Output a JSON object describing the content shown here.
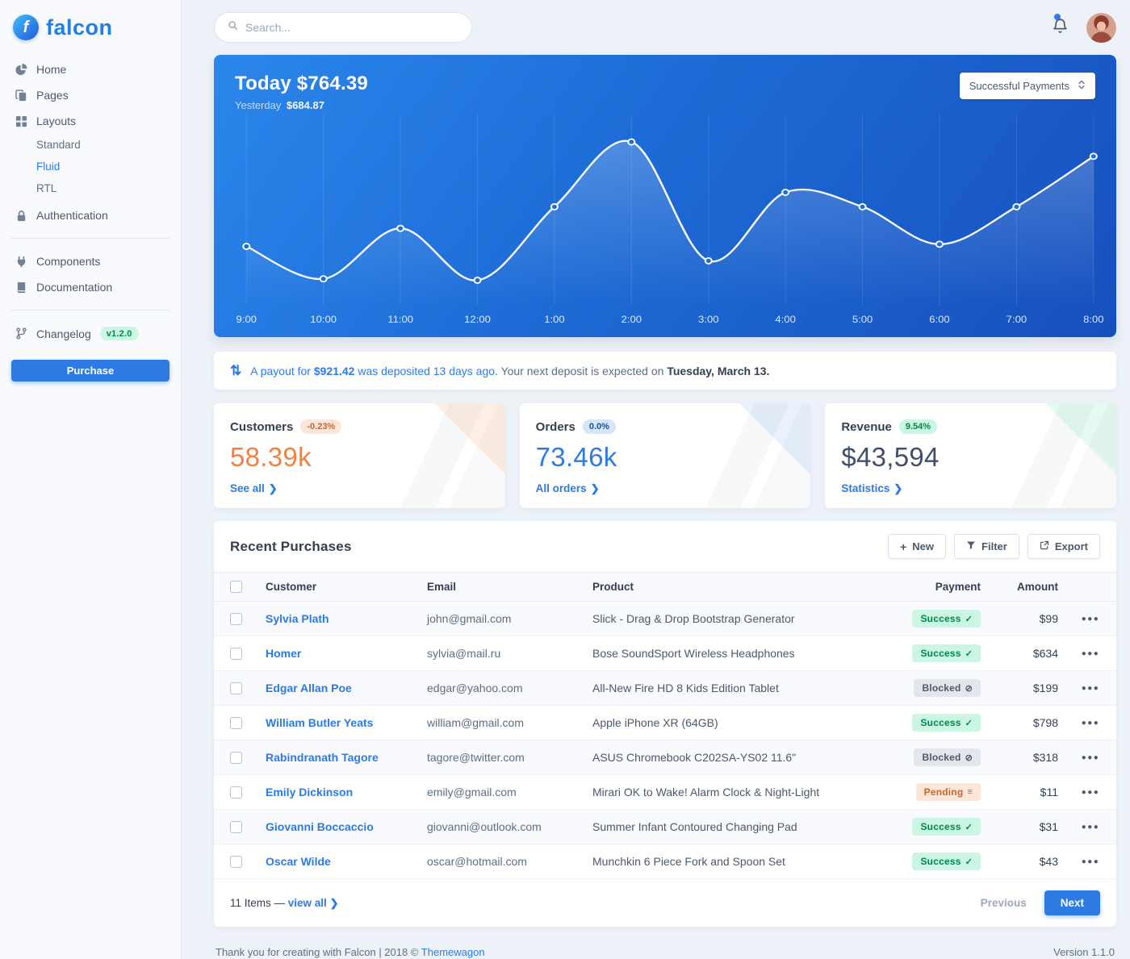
{
  "brand": {
    "name": "falcon"
  },
  "topbar": {
    "search_placeholder": "Search..."
  },
  "sidebar": {
    "home": "Home",
    "pages": "Pages",
    "layouts": "Layouts",
    "layouts_children": [
      "Standard",
      "Fluid",
      "RTL"
    ],
    "authentication": "Authentication",
    "components": "Components",
    "documentation": "Documentation",
    "changelog": "Changelog",
    "changelog_badge": "v1.2.0",
    "purchase_label": "Purchase"
  },
  "payments_card": {
    "today_label": "Today",
    "today_value": "$764.39",
    "yesterday_label": "Yesterday",
    "yesterday_value": "$684.87",
    "dropdown_value": "Successful Payments"
  },
  "chart_data": {
    "type": "line",
    "series_name": "Successful Payments",
    "categories": [
      "9:00",
      "10:00",
      "11:00",
      "12:00",
      "1:00",
      "2:00",
      "3:00",
      "4:00",
      "5:00",
      "6:00",
      "7:00",
      "8:00"
    ],
    "values": [
      75,
      30,
      100,
      28,
      130,
      220,
      55,
      150,
      130,
      78,
      130,
      200
    ],
    "ylim": [
      0,
      240
    ],
    "line_color": "#ffffff",
    "marker_fill": "#1c6fd9",
    "grid": "vertical-only",
    "legend": "none"
  },
  "payout": {
    "link_prefix": "A payout for ",
    "amount": "$921.42",
    "link_suffix": " was deposited 13 days ago",
    "rest_text": ". Your next deposit is expected on ",
    "date": "Tuesday, March 13."
  },
  "stats": [
    {
      "title": "Customers",
      "badge": "-0.23%",
      "value": "58.39k",
      "link": "See all"
    },
    {
      "title": "Orders",
      "badge": "0.0%",
      "value": "73.46k",
      "link": "All orders"
    },
    {
      "title": "Revenue",
      "badge": "9.54%",
      "value": "$43,594",
      "link": "Statistics"
    }
  ],
  "table": {
    "title": "Recent Purchases",
    "new_label": "New",
    "filter_label": "Filter",
    "export_label": "Export",
    "headers": {
      "customer": "Customer",
      "email": "Email",
      "product": "Product",
      "payment": "Payment",
      "amount": "Amount"
    },
    "status_icons": {
      "success": "✓",
      "blocked": "⊘",
      "pending": "≡"
    },
    "rows": [
      {
        "customer": "Sylvia Plath",
        "email": "john@gmail.com",
        "product": "Slick - Drag & Drop Bootstrap Generator",
        "payment": "Success",
        "status": "success",
        "amount": "$99"
      },
      {
        "customer": "Homer",
        "email": "sylvia@mail.ru",
        "product": "Bose SoundSport Wireless Headphones",
        "payment": "Success",
        "status": "success",
        "amount": "$634"
      },
      {
        "customer": "Edgar Allan Poe",
        "email": "edgar@yahoo.com",
        "product": "All-New Fire HD 8 Kids Edition Tablet",
        "payment": "Blocked",
        "status": "blocked",
        "amount": "$199"
      },
      {
        "customer": "William Butler Yeats",
        "email": "william@gmail.com",
        "product": "Apple iPhone XR (64GB)",
        "payment": "Success",
        "status": "success",
        "amount": "$798"
      },
      {
        "customer": "Rabindranath Tagore",
        "email": "tagore@twitter.com",
        "product": "ASUS Chromebook C202SA-YS02 11.6\"",
        "payment": "Blocked",
        "status": "blocked",
        "amount": "$318"
      },
      {
        "customer": "Emily Dickinson",
        "email": "emily@gmail.com",
        "product": "Mirari OK to Wake! Alarm Clock & Night-Light",
        "payment": "Pending",
        "status": "pending",
        "amount": "$11"
      },
      {
        "customer": "Giovanni Boccaccio",
        "email": "giovanni@outlook.com",
        "product": "Summer Infant Contoured Changing Pad",
        "payment": "Success",
        "status": "success",
        "amount": "$31"
      },
      {
        "customer": "Oscar Wilde",
        "email": "oscar@hotmail.com",
        "product": "Munchkin 6 Piece Fork and Spoon Set",
        "payment": "Success",
        "status": "success",
        "amount": "$43"
      }
    ],
    "footer": {
      "items_text": "11 Items — ",
      "view_all_label": "view all",
      "previous_label": "Previous",
      "next_label": "Next"
    }
  },
  "page_footer": {
    "thanks_text": "Thank you for creating with Falcon | 2018 © ",
    "brand_link_label": "Themewagon",
    "version_text": "Version 1.1.0"
  },
  "colors": {
    "accent": "#2c7be5",
    "success": "#00d27a",
    "warning": "#f5803e"
  }
}
